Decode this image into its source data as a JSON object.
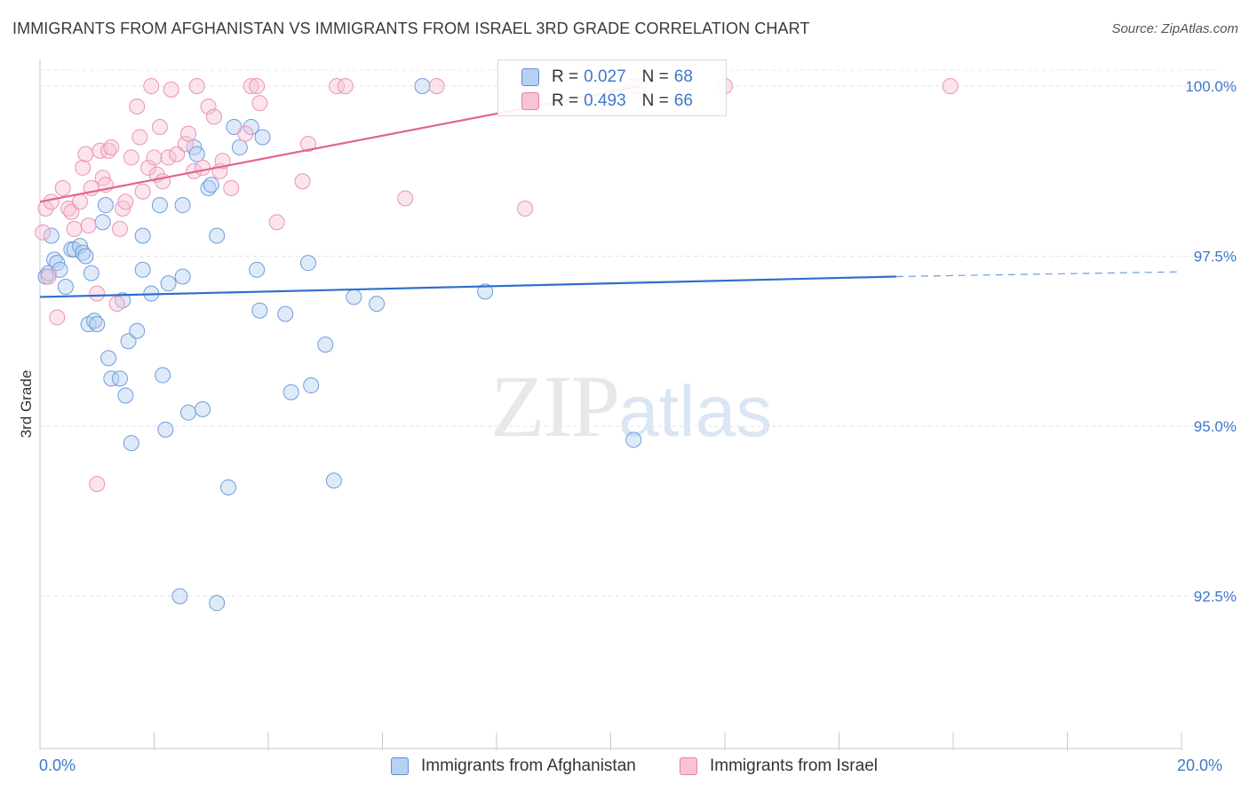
{
  "header": {
    "title": "IMMIGRANTS FROM AFGHANISTAN VS IMMIGRANTS FROM ISRAEL 3RD GRADE CORRELATION CHART",
    "source": "Source: ZipAtlas.com"
  },
  "watermark": {
    "part1": "ZIP",
    "part2": "atlas"
  },
  "legend": {
    "rows": [
      {
        "r_label": "R =",
        "r_value": "0.027",
        "n_label": "N =",
        "n_value": "68",
        "color": "#5b8fd6",
        "fill": "#b8d0f2"
      },
      {
        "r_label": "R =",
        "r_value": "0.493",
        "n_label": "N =",
        "n_value": "66",
        "color": "#e87fa3",
        "fill": "#f7c3d6"
      }
    ]
  },
  "bottom_legend": {
    "afghanistan": "Immigrants from Afghanistan",
    "israel": "Immigrants from Israel"
  },
  "colors": {
    "blue": "#3d77c9",
    "blue_fill": "#b8d0f2",
    "pink": "#e0648f",
    "pink_fill": "#f7c3d6"
  },
  "chart_data": {
    "type": "scatter",
    "title": "IMMIGRANTS FROM AFGHANISTAN VS IMMIGRANTS FROM ISRAEL 3RD GRADE CORRELATION CHART",
    "xlabel": "",
    "ylabel": "3rd Grade",
    "xlim": [
      0,
      20
    ],
    "ylim": [
      90.0,
      100.3
    ],
    "x_ticks_labels": [
      "0.0%",
      "20.0%"
    ],
    "y_ticks": [
      92.5,
      95.0,
      97.5,
      100.0
    ],
    "y_tick_labels": [
      "92.5%",
      "95.0%",
      "97.5%",
      "100.0%"
    ],
    "grid": true,
    "legend_position": "top-center",
    "series": [
      {
        "name": "Immigrants from Afghanistan",
        "r": 0.027,
        "n": 68,
        "trend": {
          "x0": 0.0,
          "y0": 96.9,
          "x1": 15.0,
          "y1": 97.2,
          "dash_to_x": 20.0,
          "dash_y": 97.27
        },
        "points": [
          [
            0.1,
            97.2
          ],
          [
            0.15,
            97.25
          ],
          [
            0.2,
            97.8
          ],
          [
            0.25,
            97.45
          ],
          [
            0.3,
            97.4
          ],
          [
            0.35,
            97.3
          ],
          [
            0.45,
            97.05
          ],
          [
            0.55,
            97.6
          ],
          [
            0.6,
            97.6
          ],
          [
            0.7,
            97.65
          ],
          [
            0.75,
            97.55
          ],
          [
            0.8,
            97.5
          ],
          [
            0.9,
            97.25
          ],
          [
            0.85,
            96.5
          ],
          [
            0.95,
            96.55
          ],
          [
            1.0,
            96.5
          ],
          [
            1.1,
            98.0
          ],
          [
            1.15,
            98.25
          ],
          [
            1.2,
            96.0
          ],
          [
            1.25,
            95.7
          ],
          [
            1.4,
            95.7
          ],
          [
            1.45,
            96.85
          ],
          [
            1.5,
            95.45
          ],
          [
            1.55,
            96.25
          ],
          [
            1.6,
            94.75
          ],
          [
            1.7,
            96.4
          ],
          [
            1.8,
            97.8
          ],
          [
            1.8,
            97.3
          ],
          [
            1.95,
            96.95
          ],
          [
            2.1,
            98.25
          ],
          [
            2.15,
            95.75
          ],
          [
            2.2,
            94.95
          ],
          [
            2.25,
            97.1
          ],
          [
            2.45,
            92.5
          ],
          [
            2.5,
            97.2
          ],
          [
            2.6,
            95.2
          ],
          [
            2.5,
            98.25
          ],
          [
            2.7,
            99.1
          ],
          [
            2.75,
            99.0
          ],
          [
            2.85,
            95.25
          ],
          [
            2.95,
            98.5
          ],
          [
            3.0,
            98.55
          ],
          [
            3.1,
            97.8
          ],
          [
            3.3,
            94.1
          ],
          [
            3.4,
            99.4
          ],
          [
            3.5,
            99.1
          ],
          [
            3.1,
            92.4
          ],
          [
            3.7,
            99.4
          ],
          [
            3.8,
            97.3
          ],
          [
            3.85,
            96.7
          ],
          [
            3.9,
            99.25
          ],
          [
            4.3,
            96.65
          ],
          [
            4.4,
            95.5
          ],
          [
            4.7,
            97.4
          ],
          [
            4.75,
            95.6
          ],
          [
            5.0,
            96.2
          ],
          [
            5.15,
            94.2
          ],
          [
            5.5,
            96.9
          ],
          [
            5.9,
            96.8
          ],
          [
            6.7,
            100.0
          ],
          [
            7.8,
            96.98
          ],
          [
            10.4,
            94.8
          ],
          [
            10.5,
            100.0
          ]
        ]
      },
      {
        "name": "Immigrants from Israel",
        "r": 0.493,
        "n": 66,
        "trend": {
          "x0": 0.0,
          "y0": 98.3,
          "x1": 10.5,
          "y1": 100.0
        },
        "points": [
          [
            0.05,
            97.85
          ],
          [
            0.1,
            98.2
          ],
          [
            0.15,
            97.2
          ],
          [
            0.2,
            98.3
          ],
          [
            0.3,
            96.6
          ],
          [
            0.4,
            98.5
          ],
          [
            0.5,
            98.2
          ],
          [
            0.55,
            98.15
          ],
          [
            0.6,
            97.9
          ],
          [
            0.7,
            98.3
          ],
          [
            0.75,
            98.8
          ],
          [
            0.8,
            99.0
          ],
          [
            0.85,
            97.95
          ],
          [
            0.9,
            98.5
          ],
          [
            1.0,
            96.95
          ],
          [
            1.05,
            99.05
          ],
          [
            1.1,
            98.65
          ],
          [
            1.15,
            98.55
          ],
          [
            1.2,
            99.05
          ],
          [
            1.25,
            99.1
          ],
          [
            1.35,
            96.8
          ],
          [
            1.4,
            97.9
          ],
          [
            1.45,
            98.2
          ],
          [
            1.5,
            98.3
          ],
          [
            1.6,
            98.95
          ],
          [
            1.7,
            99.7
          ],
          [
            1.75,
            99.25
          ],
          [
            1.8,
            98.45
          ],
          [
            1.9,
            98.8
          ],
          [
            1.95,
            100.0
          ],
          [
            2.0,
            98.95
          ],
          [
            2.05,
            98.7
          ],
          [
            2.1,
            99.4
          ],
          [
            2.15,
            98.6
          ],
          [
            2.25,
            98.95
          ],
          [
            2.3,
            99.95
          ],
          [
            2.4,
            99.0
          ],
          [
            2.55,
            99.15
          ],
          [
            2.6,
            99.3
          ],
          [
            2.7,
            98.75
          ],
          [
            2.75,
            100.0
          ],
          [
            2.85,
            98.8
          ],
          [
            2.95,
            99.7
          ],
          [
            3.05,
            99.55
          ],
          [
            3.15,
            98.75
          ],
          [
            3.2,
            98.9
          ],
          [
            3.35,
            98.5
          ],
          [
            3.6,
            99.3
          ],
          [
            3.7,
            100.0
          ],
          [
            3.8,
            100.0
          ],
          [
            3.85,
            99.75
          ],
          [
            4.15,
            98.0
          ],
          [
            4.6,
            98.6
          ],
          [
            4.7,
            99.15
          ],
          [
            5.2,
            100.0
          ],
          [
            5.35,
            100.0
          ],
          [
            6.4,
            98.35
          ],
          [
            6.95,
            100.0
          ],
          [
            8.5,
            98.2
          ],
          [
            10.4,
            100.0
          ],
          [
            12.0,
            100.0
          ],
          [
            15.95,
            100.0
          ],
          [
            1.0,
            94.15
          ]
        ]
      }
    ]
  }
}
